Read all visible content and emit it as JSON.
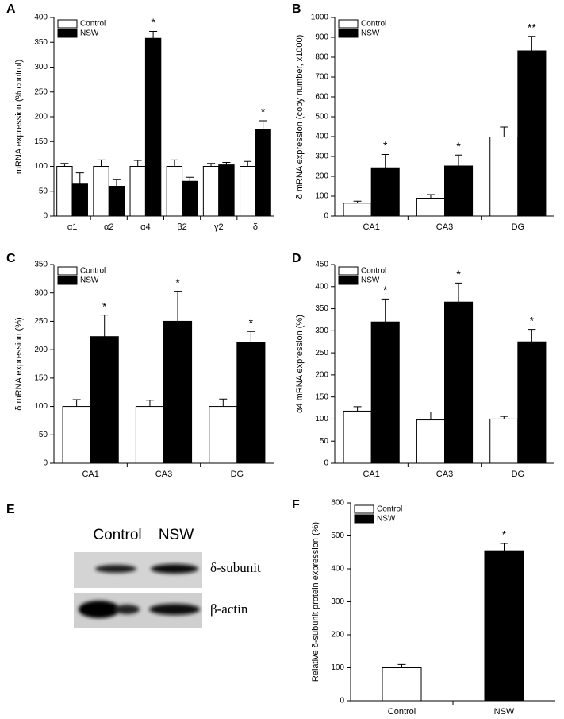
{
  "chart_data": [
    {
      "panel": "A",
      "type": "bar",
      "ylabel": "mRNA expression (% control)",
      "categories": [
        "α1",
        "α2",
        "α4",
        "β2",
        "γ2",
        "δ"
      ],
      "series": [
        {
          "name": "Control",
          "color": "#ffffff",
          "values": [
            100,
            100,
            100,
            100,
            100,
            100
          ],
          "errors": [
            6,
            13,
            12,
            13,
            6,
            10
          ],
          "markers": [
            null,
            null,
            null,
            null,
            null,
            null
          ]
        },
        {
          "name": "NSW",
          "color": "#000000",
          "values": [
            66,
            60,
            358,
            70,
            103,
            175
          ],
          "errors": [
            21,
            14,
            14,
            8,
            5,
            17
          ],
          "markers": [
            null,
            null,
            "*",
            null,
            null,
            "*"
          ]
        }
      ],
      "ylim": [
        0,
        400
      ],
      "yticks": [
        0,
        50,
        100,
        150,
        200,
        250,
        300,
        350,
        400
      ],
      "legend": "upper left"
    },
    {
      "panel": "B",
      "type": "bar",
      "ylabel": "δ mRNA expression (copy number, x1000)",
      "categories": [
        "CA1",
        "CA3",
        "DG"
      ],
      "series": [
        {
          "name": "Control",
          "color": "#ffffff",
          "values": [
            65,
            90,
            398
          ],
          "errors": [
            10,
            18,
            50
          ],
          "markers": [
            null,
            null,
            null
          ]
        },
        {
          "name": "NSW",
          "color": "#000000",
          "values": [
            243,
            252,
            832
          ],
          "errors": [
            67,
            55,
            73
          ],
          "markers": [
            "*",
            "*",
            "**"
          ]
        }
      ],
      "ylim": [
        0,
        1000
      ],
      "yticks": [
        0,
        100,
        200,
        300,
        400,
        500,
        600,
        700,
        800,
        900,
        1000
      ],
      "legend": "upper left"
    },
    {
      "panel": "C",
      "type": "bar",
      "ylabel": "δ mRNA expression (%)",
      "categories": [
        "CA1",
        "CA3",
        "DG"
      ],
      "series": [
        {
          "name": "Control",
          "color": "#ffffff",
          "values": [
            100,
            100,
            100
          ],
          "errors": [
            12,
            11,
            13
          ],
          "markers": [
            null,
            null,
            null
          ]
        },
        {
          "name": "NSW",
          "color": "#000000",
          "values": [
            223,
            250,
            213
          ],
          "errors": [
            38,
            53,
            19
          ],
          "markers": [
            "*",
            "*",
            "*"
          ]
        }
      ],
      "ylim": [
        0,
        350
      ],
      "yticks": [
        0,
        50,
        100,
        150,
        200,
        250,
        300,
        350
      ],
      "legend": "upper left"
    },
    {
      "panel": "D",
      "type": "bar",
      "ylabel": "α4 mRNA expression (%)",
      "categories": [
        "CA1",
        "CA3",
        "DG"
      ],
      "series": [
        {
          "name": "Control",
          "color": "#ffffff",
          "values": [
            118,
            98,
            100
          ],
          "errors": [
            10,
            18,
            6
          ],
          "markers": [
            null,
            null,
            null
          ]
        },
        {
          "name": "NSW",
          "color": "#000000",
          "values": [
            320,
            365,
            275
          ],
          "errors": [
            52,
            43,
            28
          ],
          "markers": [
            "*",
            "*",
            "*"
          ]
        }
      ],
      "ylim": [
        0,
        450
      ],
      "yticks": [
        0,
        50,
        100,
        150,
        200,
        250,
        300,
        350,
        400,
        450
      ],
      "legend": "upper left"
    },
    {
      "panel": "F",
      "type": "bar",
      "ylabel": "Relative δ-subunit protein expression (%)",
      "categories": [
        "Control",
        "NSW"
      ],
      "series": [
        {
          "name": "Control",
          "color": "#ffffff",
          "values": [
            100,
            null
          ],
          "errors": [
            10,
            null
          ],
          "markers": [
            null,
            null
          ]
        },
        {
          "name": "NSW",
          "color": "#000000",
          "values": [
            null,
            455
          ],
          "errors": [
            null,
            22
          ],
          "markers": [
            null,
            "*"
          ]
        }
      ],
      "ylim": [
        0,
        600
      ],
      "yticks": [
        0,
        100,
        200,
        300,
        400,
        500,
        600
      ],
      "legend": "upper left"
    }
  ],
  "blot": {
    "panel": "E",
    "lanes": [
      "Control",
      "NSW"
    ],
    "bands": [
      "δ-subunit",
      "β-actin"
    ]
  }
}
